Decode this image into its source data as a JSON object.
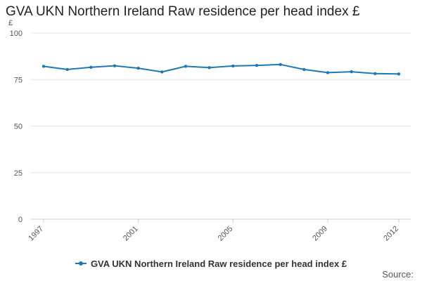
{
  "chart_data": {
    "type": "line",
    "title": "GVA UKN Northern Ireland Raw residence per head index £",
    "ylabel": "£",
    "xlabel": "",
    "x": [
      1997,
      1998,
      1999,
      2000,
      2001,
      2002,
      2003,
      2004,
      2005,
      2006,
      2007,
      2008,
      2009,
      2010,
      2011,
      2012
    ],
    "x_tick_labels": [
      "1997",
      "2001",
      "2005",
      "2009",
      "2012"
    ],
    "y_ticks": [
      0,
      25,
      50,
      75,
      100
    ],
    "ylim": [
      0,
      100
    ],
    "series": [
      {
        "name": "GVA UKN Northern Ireland Raw residence per head index £",
        "color": "#1f78b4",
        "values": [
          82.1,
          80.4,
          81.6,
          82.4,
          81.1,
          79.1,
          82.1,
          81.4,
          82.3,
          82.6,
          83.1,
          80.4,
          78.7,
          79.2,
          78.2,
          78.0
        ]
      }
    ],
    "grid": true,
    "legend_position": "bottom"
  },
  "source_label": "Source:"
}
